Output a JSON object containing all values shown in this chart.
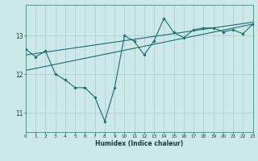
{
  "xlabel": "Humidex (Indice chaleur)",
  "bg_color": "#cce8e8",
  "grid_color": "#aacccc",
  "line_color": "#1a6e6e",
  "x_min": 0,
  "x_max": 23,
  "y_min": 10.5,
  "y_max": 13.8,
  "yticks": [
    11,
    12,
    13
  ],
  "xticks": [
    0,
    1,
    2,
    3,
    4,
    5,
    6,
    7,
    8,
    9,
    10,
    11,
    12,
    13,
    14,
    15,
    16,
    17,
    18,
    19,
    20,
    21,
    22,
    23
  ],
  "line1_x": [
    0,
    1,
    2,
    3,
    4,
    5,
    6,
    7,
    8,
    9,
    10,
    11,
    12,
    13,
    14,
    15,
    16,
    17,
    18,
    19,
    20,
    21,
    22,
    23
  ],
  "line1_y": [
    12.65,
    12.45,
    12.6,
    12.0,
    11.85,
    11.65,
    11.65,
    11.4,
    10.78,
    11.65,
    13.0,
    12.85,
    12.5,
    12.87,
    13.45,
    13.08,
    12.95,
    13.15,
    13.2,
    13.2,
    13.1,
    13.15,
    13.05,
    13.3
  ],
  "trend1_x": [
    0,
    23
  ],
  "trend1_y": [
    12.5,
    13.35
  ],
  "trend2_x": [
    0,
    23
  ],
  "trend2_y": [
    12.1,
    13.3
  ]
}
